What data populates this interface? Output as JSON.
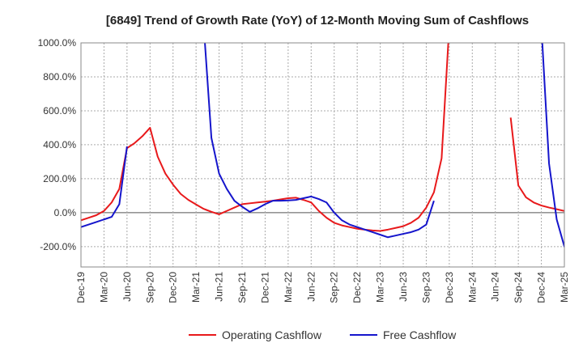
{
  "chart_data": {
    "type": "line",
    "title": "[6849]  Trend of Growth Rate (YoY) of 12-Month Moving Sum of Cashflows",
    "xlabel": "",
    "ylabel": "",
    "ylim": [
      -320,
      1000
    ],
    "y_ticks": [
      1000,
      800,
      600,
      400,
      200,
      0,
      -200
    ],
    "y_tick_labels": [
      "1000.0%",
      "800.0%",
      "600.0%",
      "400.0%",
      "200.0%",
      "0.0%",
      "-200.0%"
    ],
    "x_tick_labels": [
      "Dec-19",
      "Mar-20",
      "Jun-20",
      "Sep-20",
      "Dec-20",
      "Mar-21",
      "Jun-21",
      "Sep-21",
      "Dec-21",
      "Mar-22",
      "Jun-22",
      "Sep-22",
      "Dec-22",
      "Mar-23",
      "Jun-23",
      "Sep-23",
      "Dec-23",
      "Mar-24",
      "Jun-24",
      "Sep-24",
      "Dec-24",
      "Mar-25"
    ],
    "grid": true,
    "legend_position": "bottom",
    "series": [
      {
        "name": "Operating Cashflow",
        "color": "#e8191b",
        "segments": [
          [
            [
              0,
              -45
            ],
            [
              1,
              -30
            ],
            [
              2,
              -15
            ],
            [
              3,
              10
            ],
            [
              4,
              60
            ],
            [
              5,
              140
            ],
            [
              6,
              380
            ],
            [
              7,
              410
            ],
            [
              8,
              450
            ],
            [
              9,
              500
            ],
            [
              10,
              330
            ],
            [
              11,
              230
            ],
            [
              12,
              165
            ],
            [
              13,
              110
            ],
            [
              14,
              75
            ],
            [
              15,
              48
            ],
            [
              16,
              22
            ],
            [
              17,
              5
            ],
            [
              18,
              -10
            ],
            [
              19,
              10
            ],
            [
              20,
              30
            ],
            [
              21,
              50
            ],
            [
              22,
              55
            ],
            [
              23,
              60
            ],
            [
              24,
              65
            ],
            [
              25,
              70
            ],
            [
              26,
              78
            ],
            [
              27,
              85
            ],
            [
              28,
              88
            ],
            [
              29,
              75
            ],
            [
              30,
              60
            ],
            [
              31,
              10
            ],
            [
              32,
              -30
            ],
            [
              33,
              -60
            ],
            [
              34,
              -75
            ],
            [
              35,
              -85
            ],
            [
              36,
              -95
            ],
            [
              37,
              -100
            ],
            [
              38,
              -105
            ],
            [
              39,
              -108
            ],
            [
              40,
              -100
            ],
            [
              41,
              -90
            ],
            [
              42,
              -80
            ],
            [
              43,
              -60
            ],
            [
              44,
              -30
            ],
            [
              45,
              30
            ],
            [
              46,
              120
            ],
            [
              47,
              320
            ],
            [
              48,
              1100
            ]
          ],
          [
            [
              56,
              560
            ],
            [
              57,
              160
            ],
            [
              58,
              90
            ],
            [
              59,
              60
            ],
            [
              60,
              42
            ],
            [
              61,
              30
            ],
            [
              62,
              20
            ],
            [
              63,
              10
            ],
            [
              64,
              0
            ]
          ]
        ]
      },
      {
        "name": "Free Cashflow",
        "color": "#1515cc",
        "segments": [
          [
            [
              0,
              -85
            ],
            [
              1,
              -70
            ],
            [
              2,
              -55
            ],
            [
              3,
              -40
            ],
            [
              4,
              -25
            ],
            [
              5,
              50
            ],
            [
              6,
              390
            ]
          ],
          [
            [
              16,
              1100
            ],
            [
              17,
              440
            ],
            [
              18,
              230
            ],
            [
              19,
              140
            ],
            [
              20,
              70
            ],
            [
              21,
              35
            ],
            [
              22,
              5
            ],
            [
              23,
              25
            ],
            [
              24,
              50
            ],
            [
              25,
              70
            ],
            [
              26,
              70
            ],
            [
              27,
              72
            ],
            [
              28,
              75
            ],
            [
              29,
              85
            ],
            [
              30,
              95
            ],
            [
              31,
              80
            ],
            [
              32,
              60
            ],
            [
              33,
              0
            ],
            [
              34,
              -45
            ],
            [
              35,
              -70
            ],
            [
              36,
              -85
            ],
            [
              37,
              -100
            ],
            [
              38,
              -115
            ],
            [
              39,
              -130
            ],
            [
              40,
              -145
            ],
            [
              41,
              -135
            ],
            [
              42,
              -125
            ],
            [
              43,
              -115
            ],
            [
              44,
              -100
            ],
            [
              45,
              -70
            ],
            [
              46,
              70
            ]
          ],
          [
            [
              60,
              1100
            ],
            [
              61,
              290
            ],
            [
              62,
              -40
            ],
            [
              63,
              -200
            ],
            [
              64,
              -280
            ]
          ]
        ]
      }
    ]
  }
}
